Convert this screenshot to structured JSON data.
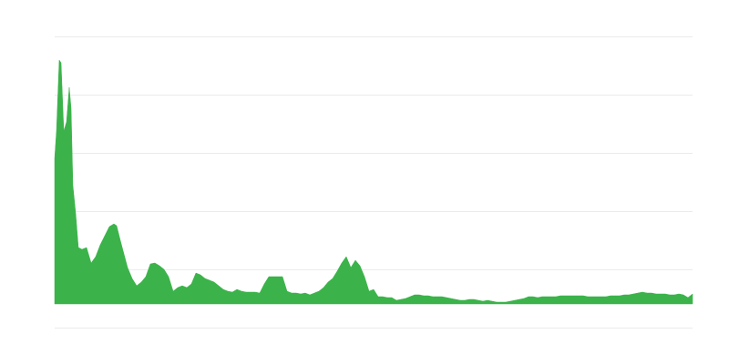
{
  "chart_data": {
    "type": "area",
    "color": "#3bb34a",
    "grid": true,
    "xlim": [
      60,
      760
    ],
    "ylim": [
      -26,
      294
    ],
    "yticks": [
      -26,
      38,
      102,
      166,
      230,
      294
    ],
    "x": [
      60,
      62,
      65,
      67,
      70,
      73,
      76,
      78,
      80,
      83,
      86,
      90,
      95,
      100,
      105,
      110,
      115,
      120,
      125,
      128,
      132,
      136,
      140,
      145,
      150,
      155,
      160,
      165,
      170,
      175,
      180,
      185,
      190,
      195,
      200,
      205,
      210,
      215,
      220,
      225,
      230,
      235,
      240,
      245,
      250,
      255,
      260,
      265,
      270,
      275,
      280,
      285,
      290,
      295,
      300,
      305,
      310,
      315,
      320,
      325,
      330,
      335,
      340,
      345,
      350,
      355,
      360,
      365,
      370,
      375,
      380,
      385,
      390,
      395,
      400,
      405,
      410,
      415,
      420,
      425,
      430,
      435,
      440,
      445,
      450,
      455,
      460,
      465,
      470,
      475,
      480,
      485,
      490,
      495,
      500,
      505,
      510,
      515,
      520,
      525,
      530,
      535,
      540,
      545,
      550,
      555,
      560,
      565,
      570,
      575,
      580,
      585,
      590,
      595,
      600,
      605,
      610,
      615,
      620,
      625,
      630,
      635,
      640,
      645,
      650,
      655,
      660,
      665,
      670,
      675,
      680,
      685,
      690,
      695,
      700,
      705,
      710,
      715,
      720,
      725,
      730,
      735,
      740,
      745,
      750,
      755,
      760
    ],
    "values": [
      160,
      190,
      268,
      265,
      190,
      200,
      238,
      215,
      130,
      100,
      62,
      60,
      62,
      45,
      52,
      65,
      75,
      85,
      88,
      86,
      70,
      55,
      40,
      28,
      20,
      24,
      30,
      44,
      45,
      42,
      38,
      30,
      14,
      18,
      20,
      18,
      22,
      34,
      32,
      28,
      26,
      24,
      20,
      16,
      14,
      13,
      16,
      14,
      13,
      13,
      13,
      12,
      22,
      30,
      30,
      30,
      30,
      14,
      12,
      12,
      11,
      12,
      10,
      12,
      14,
      18,
      24,
      28,
      36,
      45,
      52,
      40,
      48,
      42,
      30,
      14,
      16,
      8,
      8,
      7,
      7,
      4,
      5,
      6,
      8,
      10,
      10,
      9,
      9,
      8,
      8,
      8,
      7,
      6,
      5,
      4,
      4,
      5,
      5,
      4,
      3,
      4,
      3,
      2,
      2,
      2,
      3,
      4,
      5,
      6,
      8,
      8,
      7,
      8,
      8,
      8,
      8,
      9,
      9,
      9,
      9,
      9,
      9,
      8,
      8,
      8,
      8,
      8,
      9,
      9,
      9,
      10,
      10,
      11,
      12,
      13,
      12,
      12,
      11,
      11,
      11,
      10,
      10,
      11,
      10,
      7,
      11
    ]
  }
}
